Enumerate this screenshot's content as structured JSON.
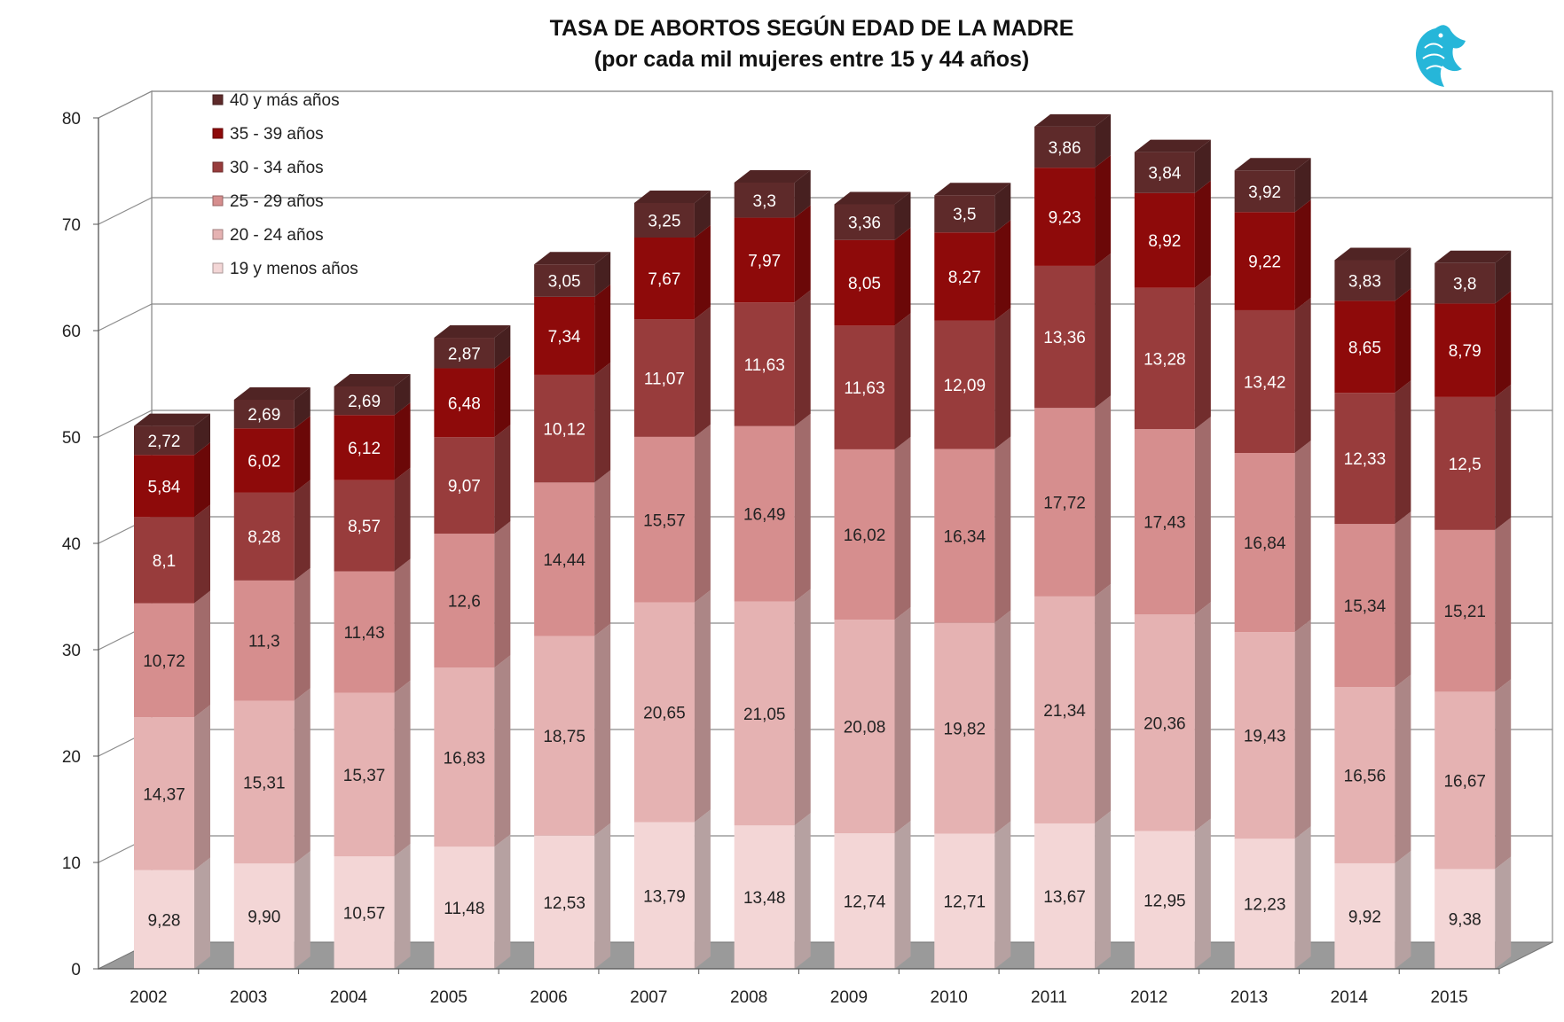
{
  "chart_data": {
    "type": "bar",
    "stacked": true,
    "title": "TASA DE ABORTOS SEGÚN EDAD DE LA MADRE",
    "subtitle": "(por cada mil mujeres entre 15 y 44 años)",
    "xlabel": "",
    "ylabel": "",
    "ylim": [
      0,
      80
    ],
    "yticks": [
      "0",
      "10",
      "20",
      "30",
      "40",
      "50",
      "60",
      "70",
      "80"
    ],
    "grid": true,
    "legend_position": "top-left",
    "categories": [
      "2002",
      "2003",
      "2004",
      "2005",
      "2006",
      "2007",
      "2008",
      "2009",
      "2010",
      "2011",
      "2012",
      "2013",
      "2014",
      "2015"
    ],
    "series": [
      {
        "name": "19 y menos años",
        "color": "#F3D6D6",
        "values": [
          9.28,
          9.9,
          10.57,
          11.48,
          12.53,
          13.79,
          13.48,
          12.74,
          12.71,
          13.67,
          12.95,
          12.23,
          9.92,
          9.38
        ],
        "labels": [
          "9,28",
          "9,90",
          "10,57",
          "11,48",
          "12,53",
          "13,79",
          "13,48",
          "12,74",
          "12,71",
          "13,67",
          "12,95",
          "12,23",
          "9,92",
          "9,38"
        ]
      },
      {
        "name": "20 - 24 años",
        "color": "#E5B2B2",
        "values": [
          14.37,
          15.31,
          15.37,
          16.83,
          18.75,
          20.65,
          21.05,
          20.08,
          19.82,
          21.34,
          20.36,
          19.43,
          16.56,
          16.67
        ],
        "labels": [
          "14,37",
          "15,31",
          "15,37",
          "16,83",
          "18,75",
          "20,65",
          "21,05",
          "20,08",
          "19,82",
          "21,34",
          "20,36",
          "19,43",
          "16,56",
          "16,67"
        ]
      },
      {
        "name": "25 - 29 años",
        "color": "#D68E8E",
        "values": [
          10.72,
          11.3,
          11.43,
          12.6,
          14.44,
          15.57,
          16.49,
          16.02,
          16.34,
          17.72,
          17.43,
          16.84,
          15.34,
          15.21
        ],
        "labels": [
          "10,72",
          "11,3",
          "11,43",
          "12,6",
          "14,44",
          "15,57",
          "16,49",
          "16,02",
          "16,34",
          "17,72",
          "17,43",
          "16,84",
          "15,34",
          "15,21"
        ]
      },
      {
        "name": "30 - 34 años",
        "color": "#983C3C",
        "values": [
          8.1,
          8.28,
          8.57,
          9.07,
          10.12,
          11.07,
          11.63,
          11.63,
          12.09,
          13.36,
          13.28,
          13.42,
          12.33,
          12.5
        ],
        "labels": [
          "8,1",
          "8,28",
          "8,57",
          "9,07",
          "10,12",
          "11,07",
          "11,63",
          "11,63",
          "12,09",
          "13,36",
          "13,28",
          "13,42",
          "12,33",
          "12,5"
        ]
      },
      {
        "name": "35 - 39 años",
        "color": "#8E0A0A",
        "values": [
          5.84,
          6.02,
          6.12,
          6.48,
          7.34,
          7.67,
          7.97,
          8.05,
          8.27,
          9.23,
          8.92,
          9.22,
          8.65,
          8.79
        ],
        "labels": [
          "5,84",
          "6,02",
          "6,12",
          "6,48",
          "7,34",
          "7,67",
          "7,97",
          "8,05",
          "8,27",
          "9,23",
          "8,92",
          "9,22",
          "8,65",
          "8,79"
        ]
      },
      {
        "name": "40 y más años",
        "color": "#5E2A2A",
        "values": [
          2.72,
          2.69,
          2.69,
          2.87,
          3.05,
          3.25,
          3.3,
          3.36,
          3.5,
          3.86,
          3.84,
          3.92,
          3.83,
          3.8
        ],
        "labels": [
          "2,72",
          "2,69",
          "2,69",
          "2,87",
          "3,05",
          "3,25",
          "3,3",
          "3,36",
          "3,5",
          "3,86",
          "3,84",
          "3,92",
          "3,83",
          "3,8"
        ]
      }
    ]
  }
}
